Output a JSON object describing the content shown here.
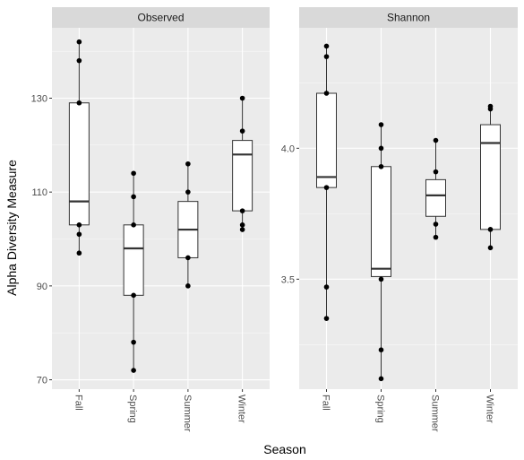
{
  "chart_data": {
    "type": "box",
    "xlabel": "Season",
    "ylabel": "Alpha Diversity Measure",
    "categories": [
      "Fall",
      "Spring",
      "Summer",
      "Winter"
    ],
    "grid": true,
    "colors": {
      "panel_bg": "#ebebeb",
      "strip_bg": "#d9d9d9",
      "grid_major": "#ffffff",
      "box_fill": "#ffffff",
      "box_line": "#333333",
      "point": "#000000"
    },
    "panels": [
      {
        "name": "Observed",
        "ylim": [
          68,
          145
        ],
        "yticks": [
          70,
          90,
          110,
          130
        ],
        "ytick_labels": [
          "70",
          "90",
          "110",
          "130"
        ],
        "boxes": [
          {
            "category": "Fall",
            "min": 97,
            "q1": 103,
            "median": 108,
            "q3": 129,
            "max": 142
          },
          {
            "category": "Spring",
            "min": 72,
            "q1": 88,
            "median": 98,
            "q3": 103,
            "max": 114
          },
          {
            "category": "Summer",
            "min": 90,
            "q1": 96,
            "median": 102,
            "q3": 108,
            "max": 116
          },
          {
            "category": "Winter",
            "min": 102,
            "q1": 106,
            "median": 118,
            "q3": 121,
            "max": 130
          }
        ],
        "points": [
          {
            "category": "Fall",
            "values": [
              142,
              138,
              129,
              103,
              101,
              97
            ]
          },
          {
            "category": "Spring",
            "values": [
              114,
              109,
              103,
              88,
              78,
              72
            ]
          },
          {
            "category": "Summer",
            "values": [
              116,
              110,
              96,
              90
            ]
          },
          {
            "category": "Winter",
            "values": [
              130,
              123,
              106,
              103,
              102
            ]
          }
        ]
      },
      {
        "name": "Shannon",
        "ylim": [
          3.08,
          4.46
        ],
        "yticks": [
          3.5,
          4.0
        ],
        "ytick_labels": [
          "3.5",
          "4.0"
        ],
        "boxes": [
          {
            "category": "Fall",
            "min": 3.35,
            "q1": 3.85,
            "median": 3.89,
            "q3": 4.21,
            "max": 4.39
          },
          {
            "category": "Spring",
            "min": 3.12,
            "q1": 3.51,
            "median": 3.54,
            "q3": 3.93,
            "max": 4.09
          },
          {
            "category": "Summer",
            "min": 3.66,
            "q1": 3.74,
            "median": 3.82,
            "q3": 3.88,
            "max": 4.03
          },
          {
            "category": "Winter",
            "min": 3.62,
            "q1": 3.69,
            "median": 4.02,
            "q3": 4.09,
            "max": 4.16
          }
        ],
        "points": [
          {
            "category": "Fall",
            "values": [
              4.39,
              4.35,
              4.21,
              3.85,
              3.47,
              3.35
            ]
          },
          {
            "category": "Spring",
            "values": [
              4.09,
              4.0,
              3.93,
              3.5,
              3.23,
              3.12
            ]
          },
          {
            "category": "Summer",
            "values": [
              4.03,
              3.91,
              3.71,
              3.66
            ]
          },
          {
            "category": "Winter",
            "values": [
              4.16,
              4.15,
              3.69,
              3.62
            ]
          }
        ]
      }
    ]
  }
}
